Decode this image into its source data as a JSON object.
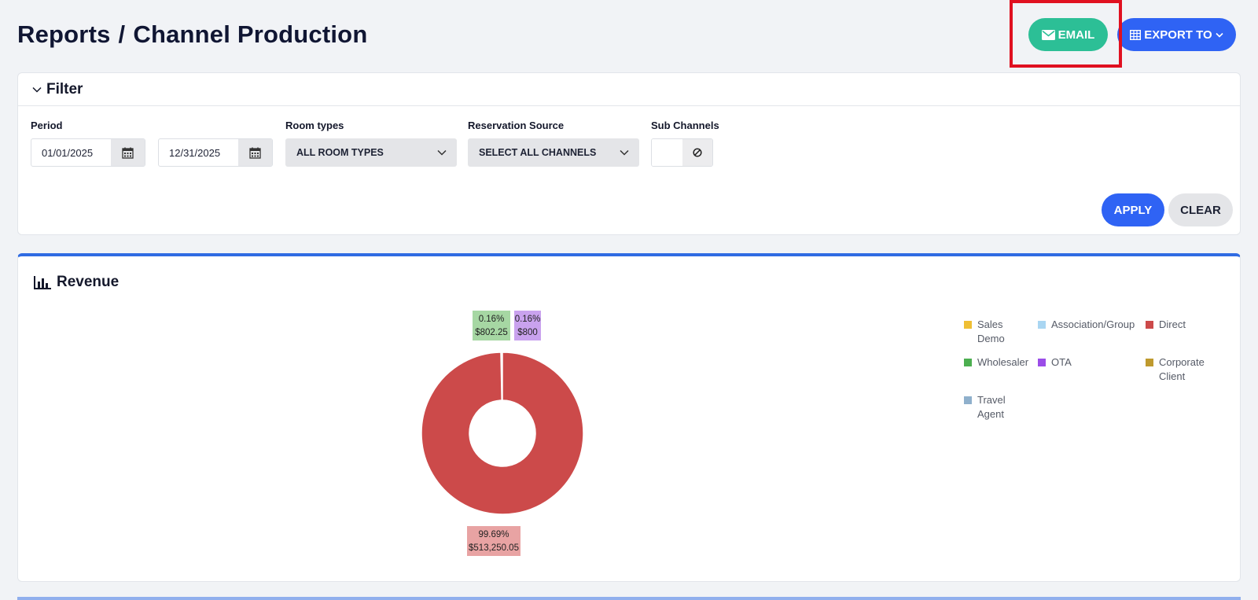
{
  "header": {
    "title_part1": "Reports",
    "title_sep": "/",
    "title_part2": "Channel Production",
    "email_label": "EMAIL",
    "export_label": "EXPORT TO"
  },
  "filter": {
    "title": "Filter",
    "period_label": "Period",
    "date_from": "01/01/2025",
    "date_to": "12/31/2025",
    "room_types_label": "Room types",
    "room_types_value": "ALL ROOM TYPES",
    "reservation_source_label": "Reservation Source",
    "reservation_source_value": "SELECT ALL CHANNELS",
    "sub_channels_label": "Sub Channels",
    "apply_label": "APPLY",
    "clear_label": "CLEAR"
  },
  "revenue": {
    "title": "Revenue"
  },
  "chart_data": {
    "type": "pie",
    "donut": true,
    "title": "",
    "slices": [
      {
        "name": "Direct",
        "percent": 99.69,
        "value": 513250.05,
        "label_pct": "99.69%",
        "label_val": "$513,250.05",
        "color": "#cc4a4a",
        "label_bg": "#e8a3a3"
      },
      {
        "name": "Wholesaler",
        "percent": 0.16,
        "value": 802.25,
        "label_pct": "0.16%",
        "label_val": "$802.25",
        "color": "#4caf50",
        "label_bg": "#a6d7a3"
      },
      {
        "name": "OTA",
        "percent": 0.16,
        "value": 800,
        "label_pct": "0.16%",
        "label_val": "$800",
        "color": "#9b4de8",
        "label_bg": "#c9a2ee"
      }
    ],
    "legend": [
      {
        "name": "Sales Demo",
        "color": "#efbf34"
      },
      {
        "name": "Association/Group",
        "color": "#a9d6f2"
      },
      {
        "name": "Direct",
        "color": "#cc4a4a"
      },
      {
        "name": "Wholesaler",
        "color": "#4caf50"
      },
      {
        "name": "OTA",
        "color": "#9b4de8"
      },
      {
        "name": "Corporate Client",
        "color": "#bf9a2e"
      },
      {
        "name": "Travel Agent",
        "color": "#8fb0cc"
      }
    ],
    "legend_position": "right"
  }
}
